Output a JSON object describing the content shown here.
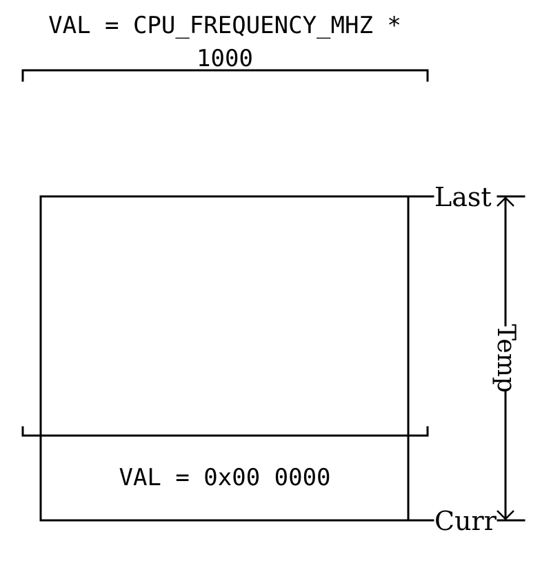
{
  "top_expression": {
    "line1": "VAL = CPU_FREQUENCY_MHZ *",
    "line2": "1000"
  },
  "bottom_expression": "VAL = 0x00 0000",
  "markers": {
    "last": "Last",
    "curr": "Curr"
  },
  "dimension_label": "Temp"
}
